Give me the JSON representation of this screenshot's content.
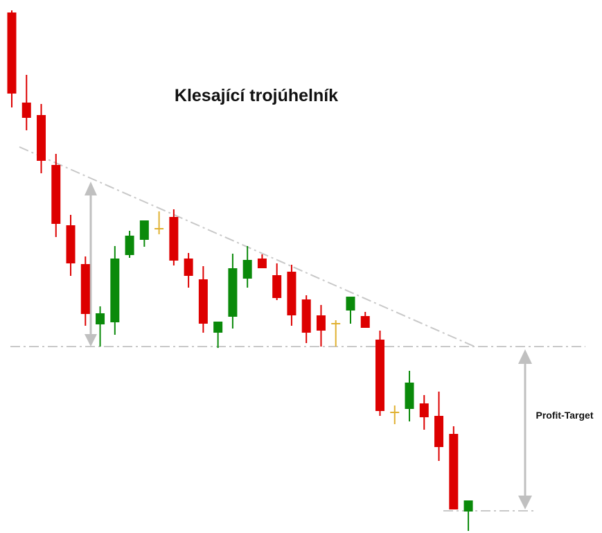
{
  "chart_data": {
    "type": "candlestick",
    "title": "Klesající trojúhelník",
    "annotations": [
      "Profit-Target"
    ],
    "ylim": [
      0,
      769
    ],
    "up_color": "#0a8a0a",
    "down_color": "#dd0000",
    "doji_color": "#e0b030",
    "candles": [
      {
        "open": 751,
        "high": 754,
        "low": 614,
        "close": 634
      },
      {
        "open": 621,
        "high": 661,
        "low": 581,
        "close": 599
      },
      {
        "open": 603,
        "high": 619,
        "low": 519,
        "close": 537
      },
      {
        "open": 531,
        "high": 547,
        "low": 427,
        "close": 446
      },
      {
        "open": 444,
        "high": 459,
        "low": 371,
        "close": 389
      },
      {
        "open": 388,
        "high": 399,
        "low": 299,
        "close": 316
      },
      {
        "open": 301,
        "high": 327,
        "low": 269,
        "close": 317
      },
      {
        "open": 304,
        "high": 414,
        "low": 286,
        "close": 396
      },
      {
        "open": 401,
        "high": 436,
        "low": 397,
        "close": 429
      },
      {
        "open": 423,
        "high": 451,
        "low": 413,
        "close": 451
      },
      {
        "open": 439,
        "high": 464,
        "low": 431,
        "close": 439
      },
      {
        "open": 456,
        "high": 467,
        "low": 386,
        "close": 393
      },
      {
        "open": 396,
        "high": 404,
        "low": 354,
        "close": 371
      },
      {
        "open": 366,
        "high": 385,
        "low": 289,
        "close": 302
      },
      {
        "open": 289,
        "high": 305,
        "low": 267,
        "close": 305
      },
      {
        "open": 312,
        "high": 403,
        "low": 295,
        "close": 382
      },
      {
        "open": 367,
        "high": 414,
        "low": 354,
        "close": 394
      },
      {
        "open": 396,
        "high": 402,
        "low": 382,
        "close": 382
      },
      {
        "open": 372,
        "high": 389,
        "low": 336,
        "close": 339
      },
      {
        "open": 377,
        "high": 387,
        "low": 299,
        "close": 314
      },
      {
        "open": 337,
        "high": 343,
        "low": 274,
        "close": 289
      },
      {
        "open": 314,
        "high": 329,
        "low": 269,
        "close": 292
      },
      {
        "open": 302,
        "high": 307,
        "low": 269,
        "close": 302
      },
      {
        "open": 321,
        "high": 341,
        "low": 302,
        "close": 341
      },
      {
        "open": 313,
        "high": 319,
        "low": 296,
        "close": 296
      },
      {
        "open": 279,
        "high": 292,
        "low": 169,
        "close": 176
      },
      {
        "open": 174,
        "high": 184,
        "low": 157,
        "close": 174
      },
      {
        "open": 179,
        "high": 234,
        "low": 161,
        "close": 217
      },
      {
        "open": 187,
        "high": 199,
        "low": 149,
        "close": 167
      },
      {
        "open": 169,
        "high": 204,
        "low": 104,
        "close": 124
      },
      {
        "open": 143,
        "high": 154,
        "low": 34,
        "close": 34
      },
      {
        "open": 31,
        "high": 47,
        "low": 3,
        "close": 47
      }
    ]
  }
}
